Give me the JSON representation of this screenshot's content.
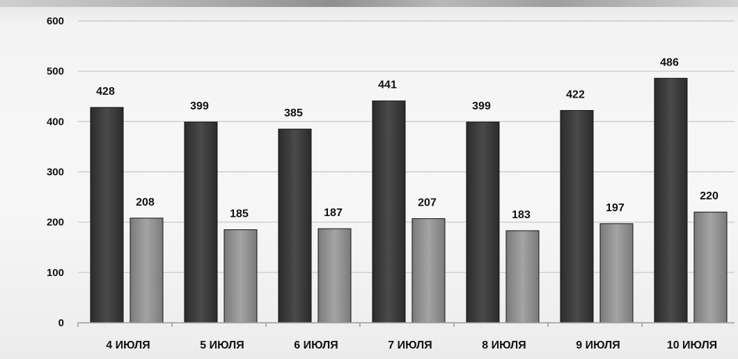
{
  "chart_data": {
    "type": "bar",
    "categories": [
      "4 ИЮЛЯ",
      "5 ИЮЛЯ",
      "6 ИЮЛЯ",
      "7 ИЮЛЯ",
      "8 ИЮЛЯ",
      "9 ИЮЛЯ",
      "10 ИЮЛЯ"
    ],
    "series": [
      {
        "values": [
          428,
          399,
          385,
          441,
          399,
          422,
          486
        ],
        "color": "#3a3a3a"
      },
      {
        "values": [
          208,
          185,
          187,
          207,
          183,
          197,
          220
        ],
        "color": "#8c8c8c"
      }
    ],
    "yticks": [
      "0",
      "100",
      "200",
      "300",
      "400",
      "500",
      "600"
    ],
    "ylim": [
      0,
      600
    ],
    "grid": true,
    "title": "",
    "xlabel": "",
    "ylabel": ""
  }
}
